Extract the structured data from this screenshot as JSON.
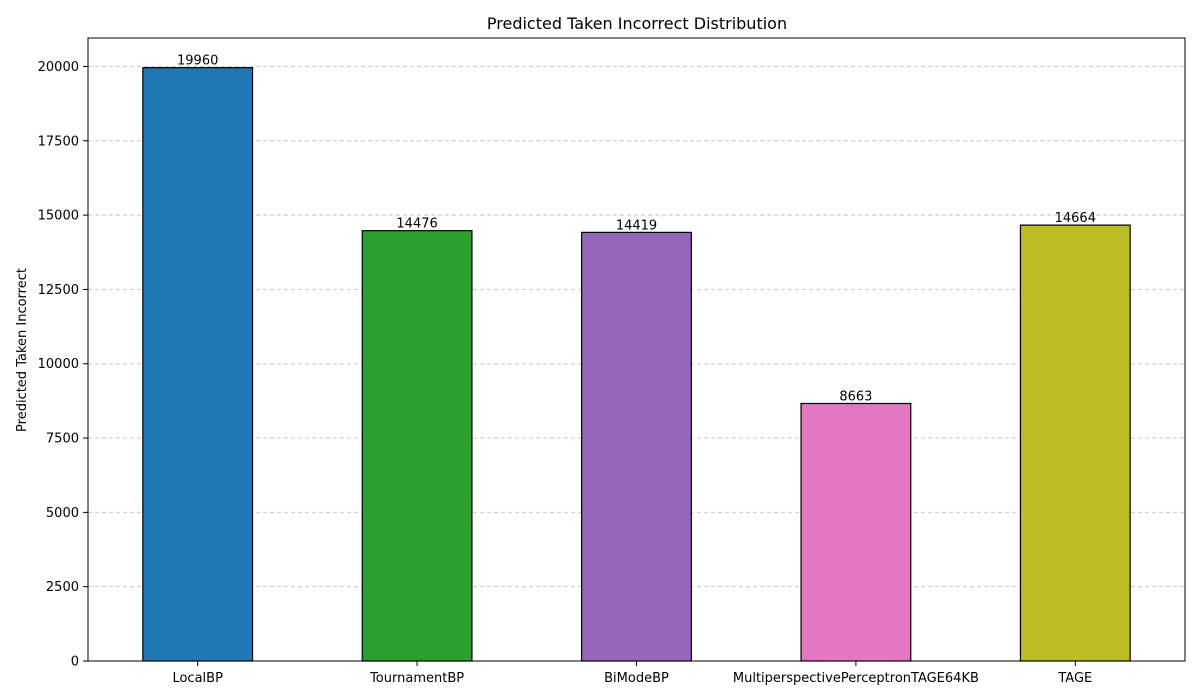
{
  "chart_data": {
    "type": "bar",
    "title": "Predicted Taken Incorrect Distribution",
    "xlabel": "",
    "ylabel": "Predicted Taken Incorrect",
    "categories": [
      "LocalBP",
      "TournamentBP",
      "BiModeBP",
      "MultiperspectivePerceptronTAGE64KB",
      "TAGE"
    ],
    "values": [
      19960,
      14476,
      14419,
      8663,
      14664
    ],
    "data_labels": [
      "19960",
      "14476",
      "14419",
      "8663",
      "14664"
    ],
    "colors": [
      "#1f77b4",
      "#2ca02c",
      "#9467bd",
      "#e377c2",
      "#bcbd22"
    ],
    "bar_edge_color": "#000000",
    "ylim": [
      0,
      20958
    ],
    "yticks": [
      0,
      2500,
      5000,
      7500,
      10000,
      12500,
      15000,
      17500,
      20000
    ],
    "ytick_labels": [
      "0",
      "2500",
      "5000",
      "7500",
      "10000",
      "12500",
      "15000",
      "17500",
      "20000"
    ],
    "grid": "y-dashed",
    "grid_color": "#c8c8c8",
    "legend": "none"
  }
}
